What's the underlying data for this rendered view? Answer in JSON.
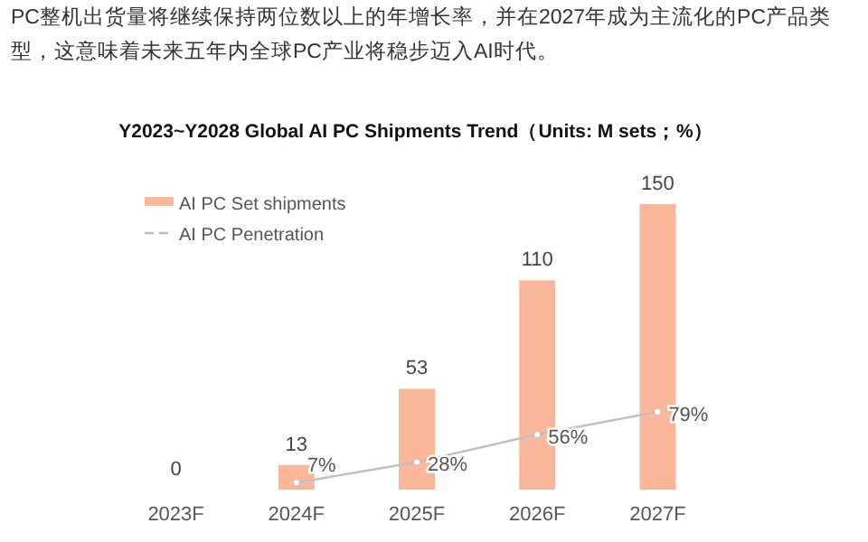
{
  "chart_data": {
    "type": "bar",
    "title": "Y2023~Y2028 Global AI PC Shipments Trend（Units: M sets；%）",
    "annotations": [
      "PC整机出货量将继续保持两位数以上的年增长率，并在2027年成为主流化的PC产品类型，这意味着未来五年内全球PC产业将稳步迈入AI时代。"
    ],
    "categories": [
      "2023F",
      "2024F",
      "2025F",
      "2026F",
      "2027F"
    ],
    "series": [
      {
        "name": "AI PC Set shipments",
        "color": "#fbb79a",
        "values": [
          0,
          13,
          53,
          110,
          150
        ]
      },
      {
        "name": "AI PC Penetration",
        "type": "line",
        "axis": "y2",
        "color": "#bfbfbf",
        "marker": "circle",
        "value_labels": [
          null,
          "7%",
          "28%",
          "56%",
          "79%"
        ],
        "values": [
          null,
          7,
          28,
          56,
          79
        ]
      }
    ],
    "ylim": [
      0,
      150
    ],
    "y2lim": [
      0,
      290
    ],
    "data_labels": true,
    "legend": "top left",
    "tick_labels": "x"
  }
}
